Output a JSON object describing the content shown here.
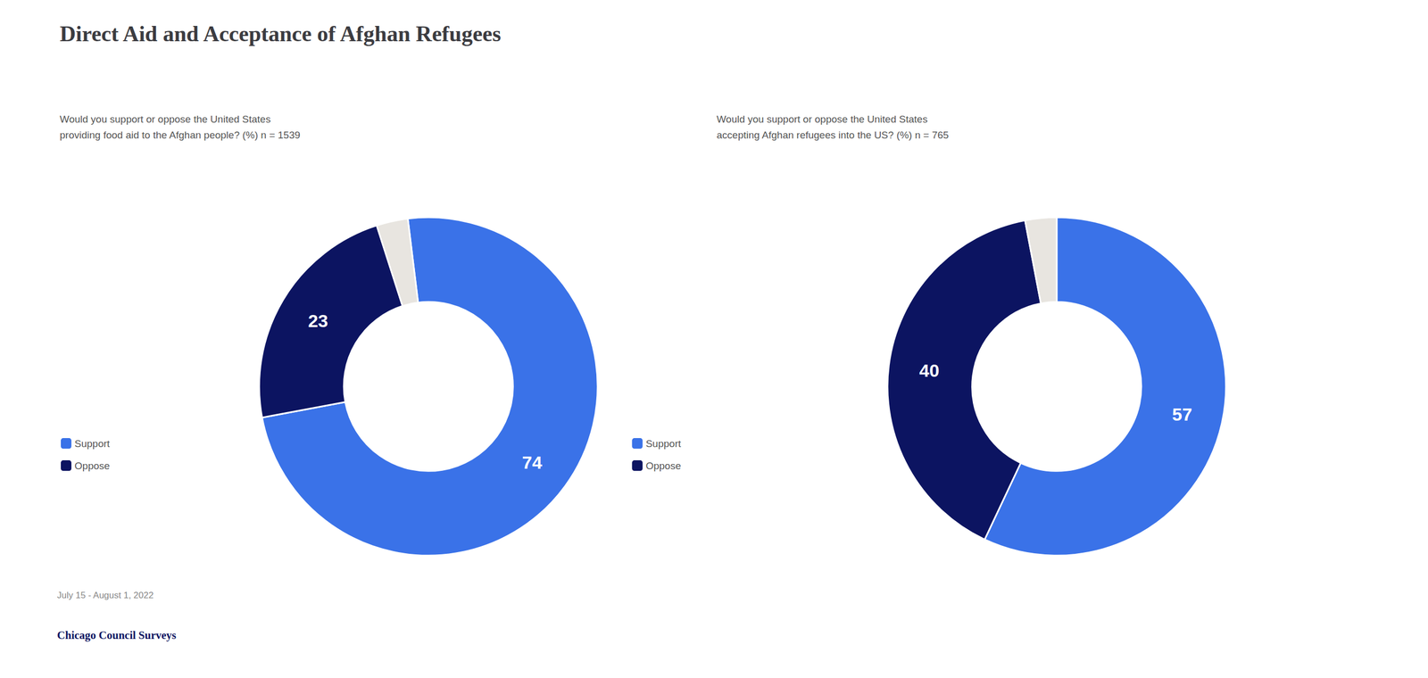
{
  "chart_data": [
    {
      "type": "pie",
      "title": "Direct Aid and Acceptance of Afghan Refugees",
      "subtitle": "Would you support or oppose the United States\nproviding food aid to the Afghan people? (%) n = 1539",
      "categories": [
        "Support",
        "Oppose",
        null
      ],
      "values": [
        74,
        23,
        3
      ],
      "value_labels": [
        "74",
        "23",
        null
      ],
      "data_labels": true,
      "colors": [
        "#3a72e8",
        "#0c1461",
        "#e8e5e0"
      ],
      "legend": "lower left",
      "annotations": [
        "July 15 - August 1, 2022",
        "Chicago Council Surveys"
      ]
    },
    {
      "type": "pie",
      "subtitle": "Would you support or oppose the United States\naccepting Afghan refugees into the US? (%) n = 765",
      "categories": [
        "Support",
        "Oppose",
        null
      ],
      "values": [
        57,
        40,
        3
      ],
      "value_labels": [
        "57",
        "40",
        null
      ],
      "data_labels": true,
      "colors": [
        "#3a72e8",
        "#0c1461",
        "#e8e5e0"
      ],
      "legend": "lower left"
    }
  ]
}
